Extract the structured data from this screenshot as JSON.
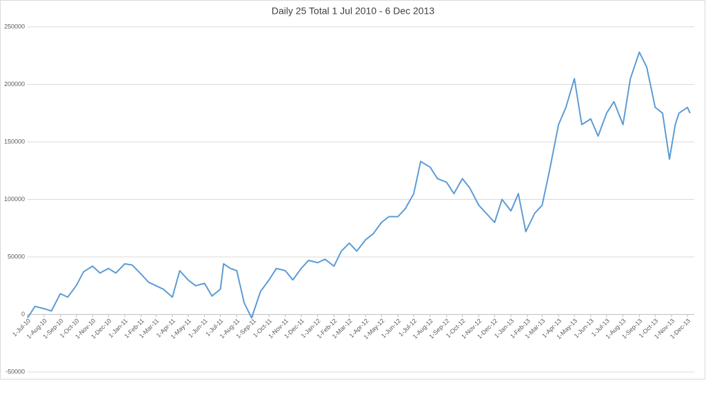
{
  "chart_data": {
    "type": "line",
    "title": "Daily 25 Total 1 Jul 2010 - 6 Dec 2013",
    "color": "#5b9bd5",
    "grid": true,
    "x": [
      "2010-07-01",
      "2010-07-15",
      "2010-08-01",
      "2010-08-15",
      "2010-09-01",
      "2010-09-15",
      "2010-10-01",
      "2010-10-15",
      "2010-11-01",
      "2010-11-15",
      "2010-12-01",
      "2010-12-15",
      "2011-01-01",
      "2011-01-15",
      "2011-02-01",
      "2011-02-15",
      "2011-03-01",
      "2011-03-15",
      "2011-04-01",
      "2011-04-15",
      "2011-05-01",
      "2011-05-15",
      "2011-06-01",
      "2011-06-15",
      "2011-07-01",
      "2011-07-07",
      "2011-07-20",
      "2011-08-01",
      "2011-08-15",
      "2011-08-29",
      "2011-09-15",
      "2011-10-01",
      "2011-10-15",
      "2011-11-01",
      "2011-11-15",
      "2011-12-01",
      "2011-12-15",
      "2012-01-01",
      "2012-01-15",
      "2012-02-01",
      "2012-02-15",
      "2012-03-01",
      "2012-03-15",
      "2012-04-01",
      "2012-04-15",
      "2012-05-01",
      "2012-05-15",
      "2012-06-01",
      "2012-06-15",
      "2012-07-01",
      "2012-07-14",
      "2012-08-01",
      "2012-08-15",
      "2012-09-01",
      "2012-09-15",
      "2012-10-01",
      "2012-10-15",
      "2012-11-01",
      "2012-11-15",
      "2012-12-01",
      "2012-12-15",
      "2013-01-01",
      "2013-01-15",
      "2013-01-29",
      "2013-02-15",
      "2013-03-01",
      "2013-03-15",
      "2013-04-01",
      "2013-04-15",
      "2013-05-01",
      "2013-05-15",
      "2013-06-01",
      "2013-06-15",
      "2013-07-01",
      "2013-07-15",
      "2013-08-01",
      "2013-08-15",
      "2013-09-01",
      "2013-09-15",
      "2013-10-01",
      "2013-10-15",
      "2013-10-28",
      "2013-11-08",
      "2013-11-15",
      "2013-12-01",
      "2013-12-06"
    ],
    "values": [
      -3000,
      7000,
      5000,
      3000,
      18000,
      15000,
      25000,
      37000,
      42000,
      36000,
      40000,
      36000,
      44000,
      43000,
      35000,
      28000,
      25000,
      22000,
      15000,
      38000,
      30000,
      25000,
      27000,
      16000,
      22000,
      44000,
      40000,
      38000,
      10000,
      -3000,
      20000,
      30000,
      40000,
      38000,
      30000,
      40000,
      47000,
      45000,
      48000,
      42000,
      55000,
      62000,
      55000,
      65000,
      70000,
      80000,
      85000,
      85000,
      92000,
      105000,
      133000,
      128000,
      118000,
      115000,
      105000,
      118000,
      110000,
      95000,
      88000,
      80000,
      100000,
      90000,
      105000,
      72000,
      88000,
      95000,
      125000,
      165000,
      180000,
      205000,
      165000,
      170000,
      155000,
      175000,
      185000,
      165000,
      205000,
      228000,
      215000,
      180000,
      175000,
      135000,
      165000,
      175000,
      180000,
      175000
    ],
    "xlim": [
      "2010-07-01",
      "2013-12-14"
    ],
    "xticks": [
      {
        "value": "2010-07-01",
        "label": "1-Jul-10"
      },
      {
        "value": "2010-08-01",
        "label": "1-Aug-10"
      },
      {
        "value": "2010-09-01",
        "label": "1-Sep-10"
      },
      {
        "value": "2010-10-01",
        "label": "1-Oct-10"
      },
      {
        "value": "2010-11-01",
        "label": "1-Nov-10"
      },
      {
        "value": "2010-12-01",
        "label": "1-Dec-10"
      },
      {
        "value": "2011-01-01",
        "label": "1-Jan-11"
      },
      {
        "value": "2011-02-01",
        "label": "1-Feb-11"
      },
      {
        "value": "2011-03-01",
        "label": "1-Mar-11"
      },
      {
        "value": "2011-04-01",
        "label": "1-Apr-11"
      },
      {
        "value": "2011-05-01",
        "label": "1-May-11"
      },
      {
        "value": "2011-06-01",
        "label": "1-Jun-11"
      },
      {
        "value": "2011-07-01",
        "label": "1-Jul-11"
      },
      {
        "value": "2011-08-01",
        "label": "1-Aug-11"
      },
      {
        "value": "2011-09-01",
        "label": "1-Sep-11"
      },
      {
        "value": "2011-10-01",
        "label": "1-Oct-11"
      },
      {
        "value": "2011-11-01",
        "label": "1-Nov-11"
      },
      {
        "value": "2011-12-01",
        "label": "1-Dec-11"
      },
      {
        "value": "2012-01-01",
        "label": "1-Jan-12"
      },
      {
        "value": "2012-02-01",
        "label": "1-Feb-12"
      },
      {
        "value": "2012-03-01",
        "label": "1-Mar-12"
      },
      {
        "value": "2012-04-01",
        "label": "1-Apr-12"
      },
      {
        "value": "2012-05-01",
        "label": "1-May-12"
      },
      {
        "value": "2012-06-01",
        "label": "1-Jun-12"
      },
      {
        "value": "2012-07-01",
        "label": "1-Jul-12"
      },
      {
        "value": "2012-08-01",
        "label": "1-Aug-12"
      },
      {
        "value": "2012-09-01",
        "label": "1-Sep-12"
      },
      {
        "value": "2012-10-01",
        "label": "1-Oct-12"
      },
      {
        "value": "2012-11-01",
        "label": "1-Nov-12"
      },
      {
        "value": "2012-12-01",
        "label": "1-Dec-12"
      },
      {
        "value": "2013-01-01",
        "label": "1-Jan-13"
      },
      {
        "value": "2013-02-01",
        "label": "1-Feb-13"
      },
      {
        "value": "2013-03-01",
        "label": "1-Mar-13"
      },
      {
        "value": "2013-04-01",
        "label": "1-Apr-13"
      },
      {
        "value": "2013-05-01",
        "label": "1-May-13"
      },
      {
        "value": "2013-06-01",
        "label": "1-Jun-13"
      },
      {
        "value": "2013-07-01",
        "label": "1-Jul-13"
      },
      {
        "value": "2013-08-01",
        "label": "1-Aug-13"
      },
      {
        "value": "2013-09-01",
        "label": "1-Sep-13"
      },
      {
        "value": "2013-10-01",
        "label": "1-Oct-13"
      },
      {
        "value": "2013-11-01",
        "label": "1-Nov-13"
      },
      {
        "value": "2013-12-01",
        "label": "1-Dec-13"
      }
    ],
    "ylim": [
      -50000,
      250000
    ],
    "yticks": [
      -50000,
      0,
      50000,
      100000,
      150000,
      200000,
      250000
    ]
  }
}
